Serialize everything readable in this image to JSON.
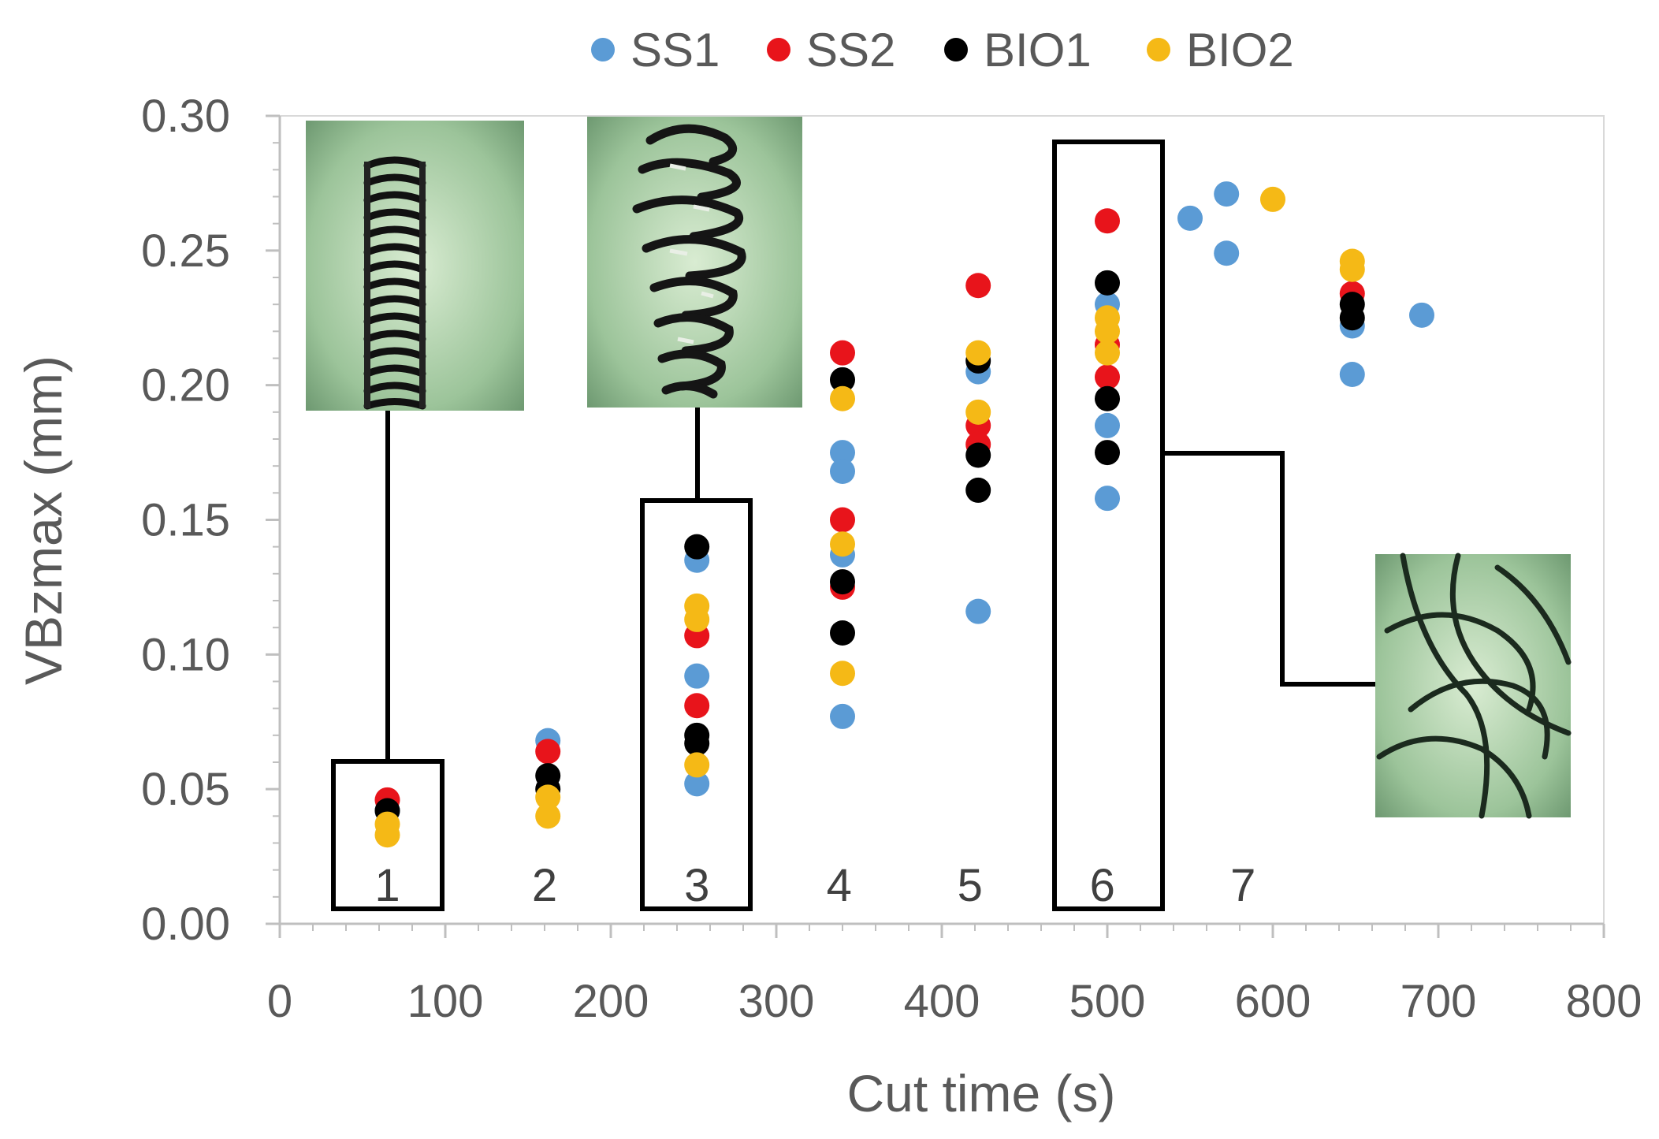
{
  "chart_data": {
    "type": "scatter",
    "xlabel": "Cut time (s)",
    "ylabel": "VBzmax (mm)",
    "xlim": [
      0,
      800
    ],
    "ylim": [
      0,
      0.3
    ],
    "x_ticks": [
      "0",
      "100",
      "200",
      "300",
      "400",
      "500",
      "600",
      "700",
      "800"
    ],
    "y_ticks": [
      "0.00",
      "0.05",
      "0.10",
      "0.15",
      "0.20",
      "0.25",
      "0.30"
    ],
    "grid": false,
    "legend_position": "top",
    "series": [
      {
        "name": "SS1",
        "color": "#5b9bd5",
        "points": [
          [
            65,
            0.042
          ],
          [
            162,
            0.068
          ],
          [
            252,
            0.135
          ],
          [
            252,
            0.092
          ],
          [
            252,
            0.052
          ],
          [
            340,
            0.175
          ],
          [
            340,
            0.168
          ],
          [
            340,
            0.137
          ],
          [
            340,
            0.077
          ],
          [
            422,
            0.116
          ],
          [
            422,
            0.205
          ],
          [
            500,
            0.23
          ],
          [
            500,
            0.185
          ],
          [
            500,
            0.158
          ],
          [
            550,
            0.262
          ],
          [
            572,
            0.271
          ],
          [
            572,
            0.249
          ],
          [
            648,
            0.222
          ],
          [
            648,
            0.204
          ],
          [
            690,
            0.226
          ]
        ]
      },
      {
        "name": "SS2",
        "color": "#e8141b",
        "points": [
          [
            65,
            0.046
          ],
          [
            162,
            0.064
          ],
          [
            252,
            0.107
          ],
          [
            252,
            0.081
          ],
          [
            340,
            0.212
          ],
          [
            340,
            0.15
          ],
          [
            340,
            0.125
          ],
          [
            422,
            0.237
          ],
          [
            422,
            0.185
          ],
          [
            422,
            0.178
          ],
          [
            500,
            0.261
          ],
          [
            500,
            0.215
          ],
          [
            500,
            0.203
          ],
          [
            648,
            0.234
          ]
        ]
      },
      {
        "name": "BIO1",
        "color": "#000000",
        "points": [
          [
            65,
            0.042
          ],
          [
            162,
            0.055
          ],
          [
            162,
            0.05
          ],
          [
            252,
            0.14
          ],
          [
            252,
            0.07
          ],
          [
            252,
            0.067
          ],
          [
            340,
            0.202
          ],
          [
            340,
            0.127
          ],
          [
            340,
            0.108
          ],
          [
            422,
            0.209
          ],
          [
            422,
            0.174
          ],
          [
            422,
            0.161
          ],
          [
            500,
            0.238
          ],
          [
            500,
            0.195
          ],
          [
            500,
            0.175
          ],
          [
            648,
            0.23
          ],
          [
            648,
            0.225
          ]
        ]
      },
      {
        "name": "BIO2",
        "color": "#f5b916",
        "points": [
          [
            65,
            0.037
          ],
          [
            65,
            0.033
          ],
          [
            162,
            0.047
          ],
          [
            162,
            0.04
          ],
          [
            252,
            0.118
          ],
          [
            252,
            0.113
          ],
          [
            252,
            0.059
          ],
          [
            340,
            0.195
          ],
          [
            340,
            0.141
          ],
          [
            340,
            0.093
          ],
          [
            422,
            0.212
          ],
          [
            422,
            0.19
          ],
          [
            500,
            0.225
          ],
          [
            500,
            0.22
          ],
          [
            500,
            0.212
          ],
          [
            600,
            0.269
          ],
          [
            648,
            0.246
          ],
          [
            648,
            0.243
          ]
        ]
      }
    ],
    "stage_labels": [
      {
        "label": "1",
        "x": 65
      },
      {
        "label": "2",
        "x": 160
      },
      {
        "label": "3",
        "x": 252
      },
      {
        "label": "4",
        "x": 338
      },
      {
        "label": "5",
        "x": 417
      },
      {
        "label": "6",
        "x": 497
      },
      {
        "label": "7",
        "x": 582
      }
    ],
    "annotations": [
      "Chip photo for stage 1: tightly coiled helical chip",
      "Chip photo for stage 3: irregular coiled chip",
      "Chip photo for stage 6: long snarled chip"
    ]
  }
}
